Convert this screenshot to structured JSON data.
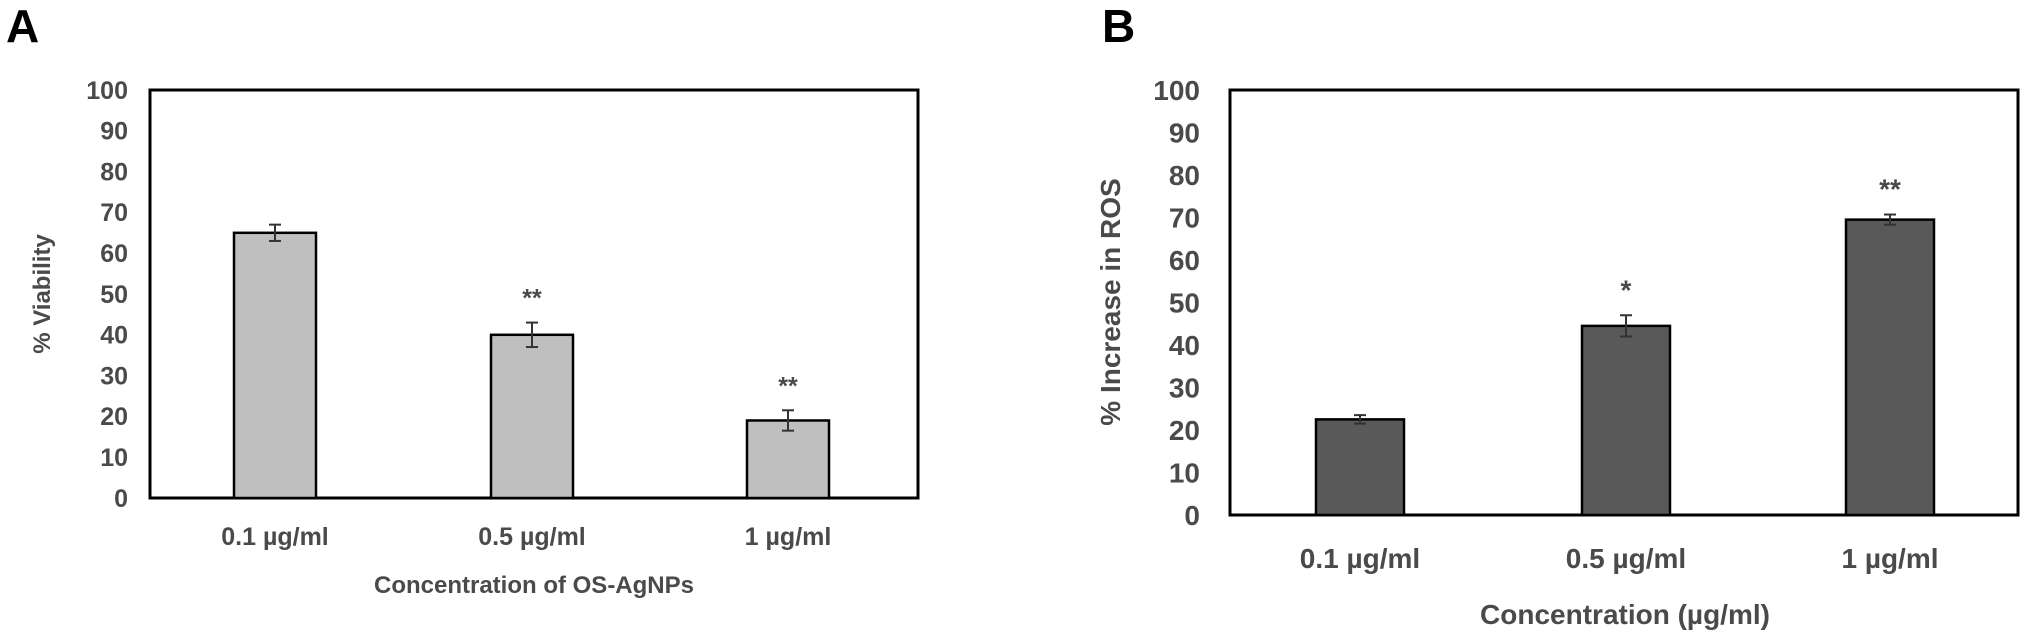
{
  "chart_data": [
    {
      "panel_label": "A",
      "type": "bar",
      "categories": [
        "0.1 µg/ml",
        "0.5 µg/ml",
        "1 µg/ml"
      ],
      "values": [
        65,
        40,
        19
      ],
      "errors": [
        2,
        3,
        2.5
      ],
      "significance": [
        "",
        "**",
        "**"
      ],
      "xlabel": "Concentration of OS-AgNPs",
      "ylabel": "% Viability",
      "ylim": [
        0,
        100
      ],
      "yticks": [
        "0",
        "10",
        "20",
        "30",
        "40",
        "50",
        "60",
        "70",
        "80",
        "90",
        "100"
      ],
      "bar_color": "#bfbfbf",
      "grid": false
    },
    {
      "panel_label": "B",
      "type": "bar",
      "categories": [
        "0.1 µg/ml",
        "0.5 µg/ml",
        "1 µg/ml"
      ],
      "values": [
        22.5,
        44.5,
        69.5
      ],
      "errors": [
        1,
        2.5,
        1.2
      ],
      "significance": [
        "",
        "*",
        "**"
      ],
      "xlabel": "Concentration (µg/ml)",
      "ylabel": "% Increase in ROS",
      "ylim": [
        0,
        100
      ],
      "yticks": [
        "0",
        "10",
        "20",
        "30",
        "40",
        "50",
        "60",
        "70",
        "80",
        "90",
        "100"
      ],
      "bar_color": "#595959",
      "grid": false
    }
  ]
}
